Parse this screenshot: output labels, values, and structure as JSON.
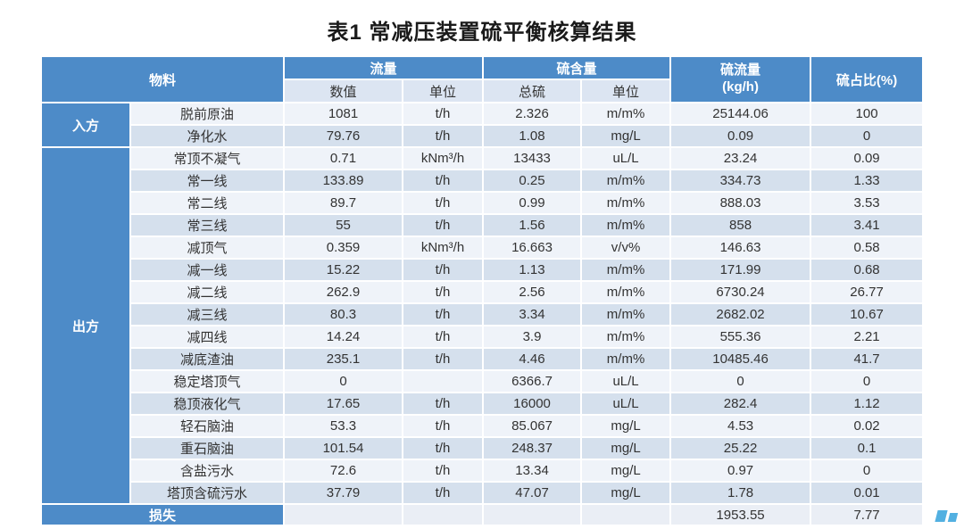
{
  "title": "表1  常减压装置硫平衡核算结果",
  "colors": {
    "header_blue": "#4D8BC8",
    "row_light": "#EFF3F9",
    "row_dark": "#D5E0ED",
    "subheader_bg": "#DCE5F2",
    "footer_bg": "#EAEEF5",
    "text_dark": "#333333",
    "title_color": "#1A1A1A",
    "watermark_blue": "#35A3DC"
  },
  "table": {
    "headers": {
      "material": "物料",
      "flow": "流量",
      "flow_value": "数值",
      "flow_unit": "单位",
      "sulfur_content": "硫含量",
      "total_sulfur": "总硫",
      "sulfur_unit": "单位",
      "sulfur_flow_line1": "硫流量",
      "sulfur_flow_line2": "(kg/h)",
      "sulfur_share": "硫占比(%)"
    },
    "groups": [
      {
        "name": "input-side",
        "label": "入方",
        "rows": [
          {
            "material": "脱前原油",
            "flow_value": "1081",
            "flow_unit": "t/h",
            "sulfur_value": "2.326",
            "sulfur_unit": "m/m%",
            "sulfur_flow": "25144.06",
            "sulfur_share": "100"
          },
          {
            "material": "净化水",
            "flow_value": "79.76",
            "flow_unit": "t/h",
            "sulfur_value": "1.08",
            "sulfur_unit": "mg/L",
            "sulfur_flow": "0.09",
            "sulfur_share": "0"
          }
        ]
      },
      {
        "name": "output-side",
        "label": "出方",
        "rows": [
          {
            "material": "常顶不凝气",
            "flow_value": "0.71",
            "flow_unit": "kNm³/h",
            "sulfur_value": "13433",
            "sulfur_unit": "uL/L",
            "sulfur_flow": "23.24",
            "sulfur_share": "0.09"
          },
          {
            "material": "常一线",
            "flow_value": "133.89",
            "flow_unit": "t/h",
            "sulfur_value": "0.25",
            "sulfur_unit": "m/m%",
            "sulfur_flow": "334.73",
            "sulfur_share": "1.33"
          },
          {
            "material": "常二线",
            "flow_value": "89.7",
            "flow_unit": "t/h",
            "sulfur_value": "0.99",
            "sulfur_unit": "m/m%",
            "sulfur_flow": "888.03",
            "sulfur_share": "3.53"
          },
          {
            "material": "常三线",
            "flow_value": "55",
            "flow_unit": "t/h",
            "sulfur_value": "1.56",
            "sulfur_unit": "m/m%",
            "sulfur_flow": "858",
            "sulfur_share": "3.41"
          },
          {
            "material": "减顶气",
            "flow_value": "0.359",
            "flow_unit": "kNm³/h",
            "sulfur_value": "16.663",
            "sulfur_unit": "v/v%",
            "sulfur_flow": "146.63",
            "sulfur_share": "0.58"
          },
          {
            "material": "减一线",
            "flow_value": "15.22",
            "flow_unit": "t/h",
            "sulfur_value": "1.13",
            "sulfur_unit": "m/m%",
            "sulfur_flow": "171.99",
            "sulfur_share": "0.68"
          },
          {
            "material": "减二线",
            "flow_value": "262.9",
            "flow_unit": "t/h",
            "sulfur_value": "2.56",
            "sulfur_unit": "m/m%",
            "sulfur_flow": "6730.24",
            "sulfur_share": "26.77"
          },
          {
            "material": "减三线",
            "flow_value": "80.3",
            "flow_unit": "t/h",
            "sulfur_value": "3.34",
            "sulfur_unit": "m/m%",
            "sulfur_flow": "2682.02",
            "sulfur_share": "10.67"
          },
          {
            "material": "减四线",
            "flow_value": "14.24",
            "flow_unit": "t/h",
            "sulfur_value": "3.9",
            "sulfur_unit": "m/m%",
            "sulfur_flow": "555.36",
            "sulfur_share": "2.21"
          },
          {
            "material": "减底渣油",
            "flow_value": "235.1",
            "flow_unit": "t/h",
            "sulfur_value": "4.46",
            "sulfur_unit": "m/m%",
            "sulfur_flow": "10485.46",
            "sulfur_share": "41.7"
          },
          {
            "material": "稳定塔顶气",
            "flow_value": "0",
            "flow_unit": "",
            "sulfur_value": "6366.7",
            "sulfur_unit": "uL/L",
            "sulfur_flow": "0",
            "sulfur_share": "0"
          },
          {
            "material": "稳顶液化气",
            "flow_value": "17.65",
            "flow_unit": "t/h",
            "sulfur_value": "16000",
            "sulfur_unit": "uL/L",
            "sulfur_flow": "282.4",
            "sulfur_share": "1.12"
          },
          {
            "material": "轻石脑油",
            "flow_value": "53.3",
            "flow_unit": "t/h",
            "sulfur_value": "85.067",
            "sulfur_unit": "mg/L",
            "sulfur_flow": "4.53",
            "sulfur_share": "0.02"
          },
          {
            "material": "重石脑油",
            "flow_value": "101.54",
            "flow_unit": "t/h",
            "sulfur_value": "248.37",
            "sulfur_unit": "mg/L",
            "sulfur_flow": "25.22",
            "sulfur_share": "0.1"
          },
          {
            "material": "含盐污水",
            "flow_value": "72.6",
            "flow_unit": "t/h",
            "sulfur_value": "13.34",
            "sulfur_unit": "mg/L",
            "sulfur_flow": "0.97",
            "sulfur_share": "0"
          },
          {
            "material": "塔顶含硫污水",
            "flow_value": "37.79",
            "flow_unit": "t/h",
            "sulfur_value": "47.07",
            "sulfur_unit": "mg/L",
            "sulfur_flow": "1.78",
            "sulfur_share": "0.01"
          }
        ]
      }
    ],
    "footer": {
      "label": "损失",
      "flow_value": "",
      "flow_unit": "",
      "sulfur_value": "",
      "sulfur_unit": "",
      "sulfur_flow": "1953.55",
      "sulfur_share": "7.77"
    }
  }
}
